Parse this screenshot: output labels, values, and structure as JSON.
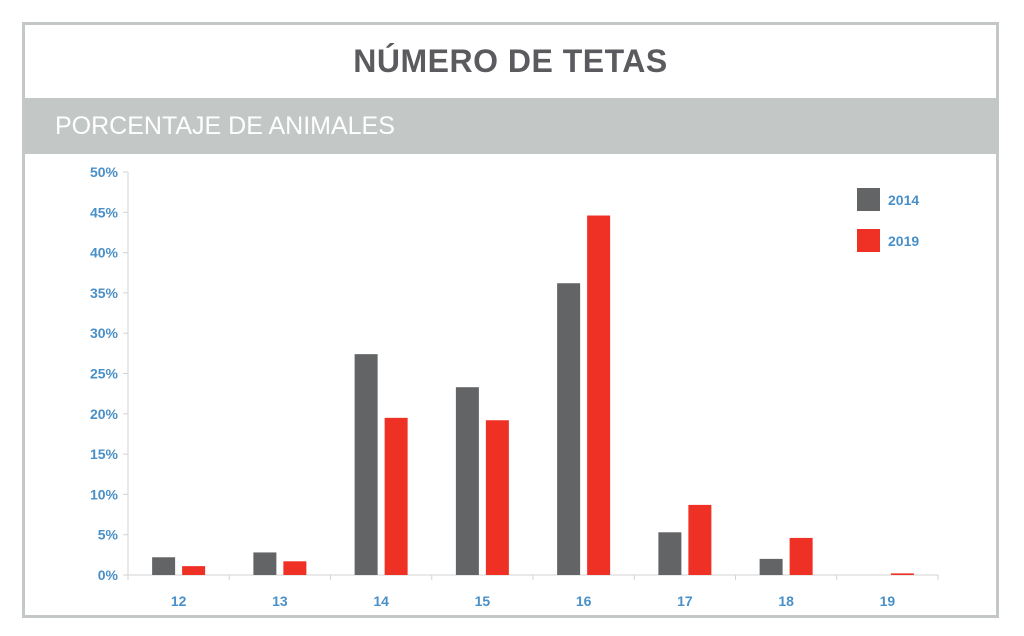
{
  "title": "NÚMERO DE TETAS",
  "subtitle": "PORCENTAJE DE ANIMALES",
  "colors": {
    "series_2014": "#636466",
    "series_2019": "#ee3124",
    "tick_text": "#4a90c8",
    "band": "#c3c8c7"
  },
  "chart_data": {
    "type": "bar",
    "categories": [
      "12",
      "13",
      "14",
      "15",
      "16",
      "17",
      "18",
      "19"
    ],
    "series": [
      {
        "name": "2014",
        "values": [
          2.2,
          2.8,
          27.4,
          23.3,
          36.2,
          5.3,
          2.0,
          0.0
        ]
      },
      {
        "name": "2019",
        "values": [
          1.1,
          1.7,
          19.5,
          19.2,
          44.6,
          8.7,
          4.6,
          0.2
        ]
      }
    ],
    "y_ticks": [
      "0%",
      "5%",
      "10%",
      "15%",
      "20%",
      "25%",
      "30%",
      "35%",
      "40%",
      "45%",
      "50%"
    ],
    "ylim": [
      0,
      50
    ],
    "grid": false,
    "legend": "top-right"
  }
}
